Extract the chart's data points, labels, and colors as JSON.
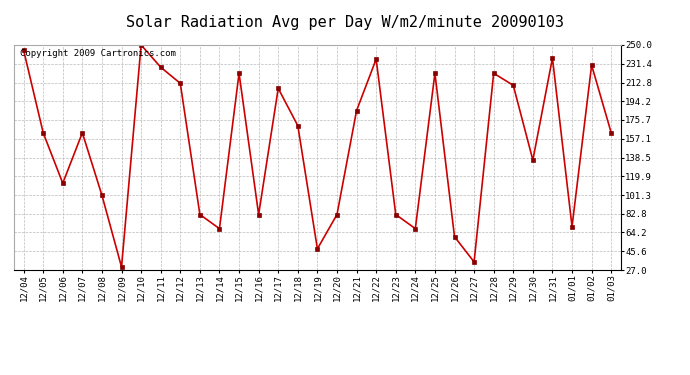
{
  "title": "Solar Radiation Avg per Day W/m2/minute 20090103",
  "copyright_text": "Copyright 2009 Cartronics.com",
  "labels": [
    "12/04",
    "12/05",
    "12/06",
    "12/07",
    "12/08",
    "12/09",
    "12/10",
    "12/11",
    "12/12",
    "12/13",
    "12/14",
    "12/15",
    "12/16",
    "12/17",
    "12/18",
    "12/19",
    "12/20",
    "12/21",
    "12/22",
    "12/23",
    "12/24",
    "12/25",
    "12/26",
    "12/27",
    "12/28",
    "12/29",
    "12/30",
    "12/31",
    "01/01",
    "01/02",
    "01/03"
  ],
  "values": [
    245.0,
    163.0,
    113.0,
    163.0,
    101.0,
    30.0,
    250.0,
    228.0,
    212.0,
    82.0,
    68.0,
    222.0,
    82.0,
    207.0,
    170.0,
    48.0,
    82.0,
    185.0,
    236.0,
    82.0,
    68.0,
    222.0,
    60.0,
    35.0,
    222.0,
    210.0,
    136.0,
    237.0,
    70.0,
    230.0,
    163.0
  ],
  "line_color": "#cc0000",
  "marker_color": "#880000",
  "bg_color": "#ffffff",
  "plot_bg_color": "#ffffff",
  "grid_color": "#bbbbbb",
  "title_fontsize": 11,
  "copyright_fontsize": 6.5,
  "tick_fontsize": 6.5,
  "ytick_labels": [
    "27.0",
    "45.6",
    "64.2",
    "82.8",
    "101.3",
    "119.9",
    "138.5",
    "157.1",
    "175.7",
    "194.2",
    "212.8",
    "231.4",
    "250.0"
  ],
  "ytick_values": [
    27.0,
    45.6,
    64.2,
    82.8,
    101.3,
    119.9,
    138.5,
    157.1,
    175.7,
    194.2,
    212.8,
    231.4,
    250.0
  ],
  "ymin": 27.0,
  "ymax": 250.0
}
